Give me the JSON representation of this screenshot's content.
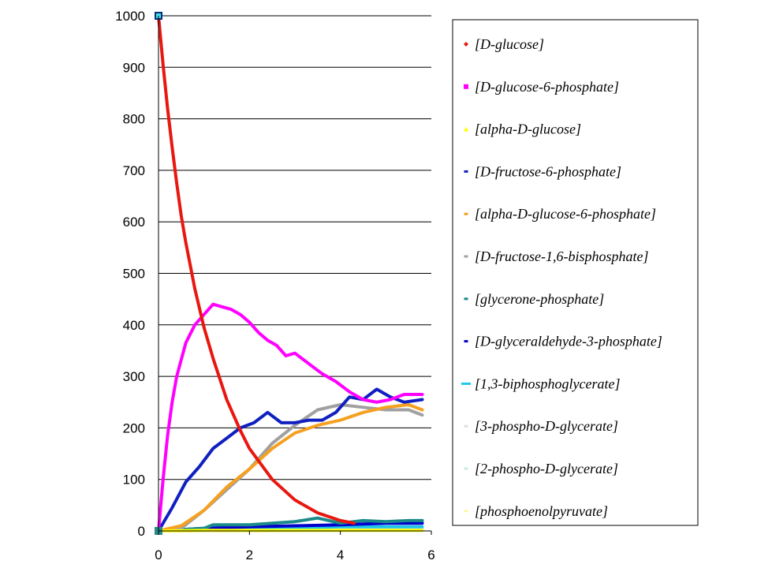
{
  "chart_data": {
    "type": "line",
    "title": "",
    "xlabel": "",
    "ylabel": "",
    "xlim": [
      0,
      6
    ],
    "ylim": [
      0,
      1000
    ],
    "x_ticks": [
      0,
      2,
      4,
      6
    ],
    "y_ticks": [
      0,
      100,
      200,
      300,
      400,
      500,
      600,
      700,
      800,
      900,
      1000
    ],
    "grid": "horizontal",
    "legend_position": "right",
    "series": [
      {
        "name": "[D-glucose]",
        "color": "#e8170f",
        "marker": "diamond",
        "x": [
          0,
          0.1,
          0.2,
          0.3,
          0.4,
          0.5,
          0.6,
          0.8,
          1.0,
          1.2,
          1.5,
          1.8,
          2.0,
          2.5,
          3.0,
          3.5,
          4.0,
          4.3
        ],
        "y": [
          1000,
          905,
          820,
          745,
          675,
          612,
          560,
          470,
          395,
          335,
          255,
          195,
          160,
          100,
          60,
          35,
          20,
          15
        ]
      },
      {
        "name": "[D-glucose-6-phosphate]",
        "color": "#ff00ff",
        "marker": "square",
        "x": [
          0,
          0.1,
          0.2,
          0.3,
          0.4,
          0.6,
          0.8,
          1.0,
          1.2,
          1.4,
          1.6,
          1.8,
          2.0,
          2.2,
          2.4,
          2.6,
          2.8,
          3.0,
          3.3,
          3.6,
          3.9,
          4.2,
          4.5,
          4.8,
          5.1,
          5.4,
          5.8
        ],
        "y": [
          0,
          100,
          185,
          250,
          300,
          365,
          400,
          420,
          440,
          435,
          430,
          420,
          405,
          385,
          370,
          360,
          340,
          345,
          325,
          305,
          290,
          270,
          255,
          250,
          255,
          265,
          265
        ]
      },
      {
        "name": "[alpha-D-glucose]",
        "color": "#ffff00",
        "marker": "triangle",
        "x": [
          0,
          1,
          2,
          3,
          4,
          5,
          5.8
        ],
        "y": [
          0,
          1,
          1,
          1,
          1,
          1,
          1
        ]
      },
      {
        "name": "[D-fructose-6-phosphate]",
        "color": "#1020c0",
        "marker": "dash",
        "x": [
          0,
          0.3,
          0.6,
          0.9,
          1.2,
          1.5,
          1.8,
          2.1,
          2.4,
          2.7,
          3.0,
          3.3,
          3.6,
          3.9,
          4.2,
          4.5,
          4.8,
          5.1,
          5.4,
          5.8
        ],
        "y": [
          0,
          45,
          95,
          125,
          160,
          180,
          200,
          210,
          230,
          210,
          210,
          215,
          215,
          230,
          260,
          255,
          275,
          260,
          250,
          255
        ]
      },
      {
        "name": "[alpha-D-glucose-6-phosphate]",
        "color": "#f5a020",
        "marker": "dash",
        "x": [
          0,
          0.5,
          1.0,
          1.5,
          2.0,
          2.5,
          3.0,
          3.5,
          4.0,
          4.5,
          5.0,
          5.5,
          5.8
        ],
        "y": [
          0,
          10,
          40,
          85,
          120,
          160,
          190,
          205,
          215,
          230,
          240,
          245,
          235
        ]
      },
      {
        "name": "[D-fructose-1,6-bisphosphate]",
        "color": "#a0a0a0",
        "marker": "dash",
        "x": [
          0,
          0.5,
          1.0,
          1.5,
          2.0,
          2.5,
          3.0,
          3.5,
          4.0,
          4.5,
          5.0,
          5.5,
          5.8
        ],
        "y": [
          0,
          5,
          40,
          80,
          120,
          170,
          205,
          235,
          245,
          240,
          235,
          235,
          225
        ]
      },
      {
        "name": "[glycerone-phosphate]",
        "color": "#1a8a8a",
        "marker": "dash",
        "x": [
          0,
          1,
          1.2,
          2,
          3,
          3.5,
          4,
          4.5,
          5,
          5.5,
          5.8
        ],
        "y": [
          0,
          5,
          12,
          12,
          18,
          25,
          15,
          20,
          18,
          20,
          20
        ]
      },
      {
        "name": "[D-glyceraldehyde-3-phosphate]",
        "color": "#0000cc",
        "marker": "dash",
        "x": [
          0,
          1,
          2,
          3,
          4,
          5,
          5.8
        ],
        "y": [
          0,
          5,
          8,
          10,
          12,
          15,
          15
        ]
      },
      {
        "name": "[1,3-biphosphoglycerate]",
        "color": "#20c8e8",
        "marker": "dash",
        "x": [
          0,
          1,
          2,
          3,
          4,
          5,
          5.8
        ],
        "y": [
          0,
          3,
          5,
          6,
          8,
          8,
          8
        ]
      },
      {
        "name": "[3-phospho-D-glycerate]",
        "color": "#e0e0e0",
        "marker": "dash",
        "x": [
          0,
          2,
          4,
          5.8
        ],
        "y": [
          0,
          1,
          2,
          3
        ]
      },
      {
        "name": "[2-phospho-D-glycerate]",
        "color": "#c8ece8",
        "marker": "dash",
        "x": [
          0,
          2,
          4,
          5.8
        ],
        "y": [
          0,
          1,
          1,
          2
        ]
      },
      {
        "name": "[phosphoenolpyruvate]",
        "color": "#fff8a0",
        "marker": "dash",
        "x": [
          0,
          2,
          4,
          5.8
        ],
        "y": [
          0,
          0,
          1,
          1
        ]
      }
    ]
  }
}
